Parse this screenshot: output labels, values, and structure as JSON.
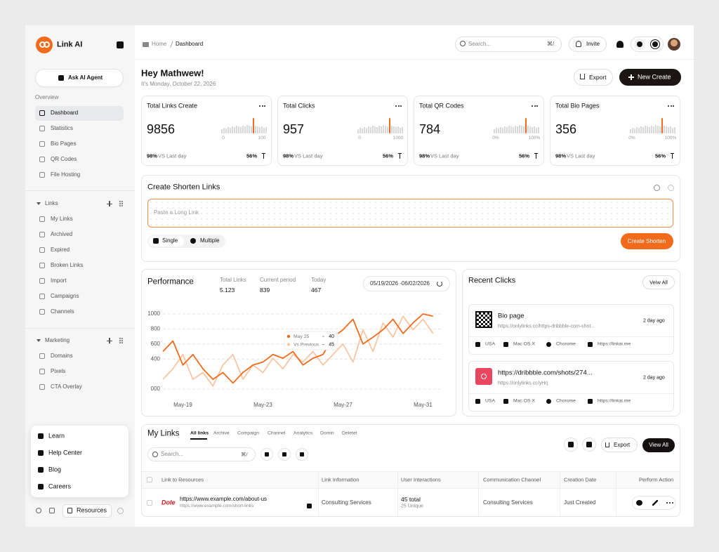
{
  "sidebar": {
    "brand": "Link AI",
    "ask": "Ask AI Agent",
    "overview_label": "Overview",
    "overview": [
      "Dashboard",
      "Statistics",
      "Bio Pages",
      "QR Codes",
      "File Hosting"
    ],
    "links_label": "Links",
    "links": [
      "My Links",
      "Archived",
      "Expired",
      "Broken Links",
      "Import",
      "Campaigns",
      "Channels"
    ],
    "marketing_label": "Marketing",
    "marketing": [
      "Domains",
      "Pixels",
      "CTA Overlay"
    ],
    "help": [
      "Learn",
      "Help Center",
      "Blog",
      "Careers"
    ],
    "resources": "Resources"
  },
  "topbar": {
    "breadcrumb": [
      "Home",
      "Dashboard"
    ],
    "search": "Search...",
    "search_shortcut": "⌘/",
    "invite": "Invite"
  },
  "header": {
    "greeting": "Hey Mathwew!",
    "date": "It's Monday, October 22, 2026",
    "export": "Export",
    "new": "New Create"
  },
  "stats": [
    {
      "title": "Total Links Create",
      "value": 9856,
      "min": "0",
      "max": "100",
      "change": "98%",
      "change_label": "VS Last day",
      "rate": "56%"
    },
    {
      "title": "Total Clicks",
      "value": 957,
      "min": "0",
      "max": "1000",
      "change": "98%",
      "change_label": "VS Last day",
      "rate": "56%"
    },
    {
      "title": "Total QR Codes",
      "value": 784,
      "min": "0%",
      "max": "100%",
      "change": "98%",
      "change_label": "VS Last day",
      "rate": "56%"
    },
    {
      "title": "Total Bio Pages",
      "value": 356,
      "min": "0%",
      "max": "100%",
      "change": "98%",
      "change_label": "VS Last day",
      "rate": "56%"
    }
  ],
  "shorten": {
    "title": "Create Shorten Links",
    "placeholder": "Paste a Long Link",
    "single": "Single",
    "multiple": "Multiple",
    "button": "Create Shorten"
  },
  "performance": {
    "stats": [
      {
        "label": "Total Links",
        "value": "5.123"
      },
      {
        "label": "Current period",
        "value": 839
      },
      {
        "label": "Today",
        "value": 467
      }
    ],
    "range": "05/19/2026 -06/02/2026"
  },
  "chart_data": {
    "type": "line",
    "title": "Performance",
    "categories": [
      null,
      null,
      "May-19",
      null,
      null,
      null,
      null,
      null,
      null,
      null,
      "May-23",
      null,
      null,
      null,
      null,
      null,
      null,
      null,
      "May-27",
      null,
      null,
      null,
      null,
      null,
      null,
      null,
      "May-31",
      null
    ],
    "series": [
      {
        "name": "May 25",
        "color": "#f26b1d",
        "values": [
          500,
          640,
          320,
          460,
          270,
          130,
          220,
          80,
          220,
          320,
          360,
          460,
          410,
          500,
          320,
          410,
          460,
          690,
          790,
          930,
          600,
          690,
          790,
          930,
          740,
          880,
          1000,
          970
        ]
      },
      {
        "name": "Vs Previous",
        "color": "#f8c6a3",
        "values": [
          130,
          270,
          460,
          130,
          220,
          40,
          320,
          460,
          130,
          320,
          220,
          410,
          270,
          460,
          360,
          500,
          320,
          460,
          600,
          360,
          790,
          500,
          880,
          690,
          970,
          790,
          930,
          740
        ]
      }
    ],
    "ylim": [
      0,
      1000
    ],
    "yticks": [
      {
        "value": 0,
        "label": "000"
      },
      400,
      600,
      800,
      1000
    ],
    "grid": true,
    "tooltip": {
      "values": [
        40,
        45
      ]
    }
  },
  "recent": {
    "title": "Recent Clicks",
    "view_all": "Veiw All",
    "items": [
      {
        "title": "Bio page",
        "url": "https://onlylinks.cc/https-dribbble-com-shot...",
        "time": "2 day ago",
        "meta": [
          "USA",
          "Mac OS X",
          "Chorome",
          "https://linkai.me"
        ]
      },
      {
        "title": "https://dribbble.com/shots/274...",
        "url": "https://onlylinks.cc/yHrj",
        "time": "2 day ago",
        "meta": [
          "USA",
          "Mac OS X",
          "Chorome",
          "https://linkai.me"
        ]
      }
    ]
  },
  "my_links": {
    "title": "My Links",
    "tabs": [
      "All links",
      "Archive",
      "Compaign",
      "Channel",
      "Analytics",
      "Domin",
      "Deletet"
    ],
    "search": "Search...",
    "search_shortcut": "⌘/",
    "export": "Export",
    "view_all": "View All",
    "columns": [
      "Link to Resources",
      "Link Information",
      "User Interactions",
      "Communication Channel",
      "Creation Date",
      "Perform Action"
    ],
    "rows": [
      {
        "logo": "Dole",
        "url": "https://www.example.com/about-us",
        "short": "https://www.example.com/short-links",
        "info": "Consulting Services",
        "interactions": "45 total",
        "unique": "25 Unique",
        "channel": "Consulting Services",
        "date": "Just Created"
      }
    ]
  }
}
